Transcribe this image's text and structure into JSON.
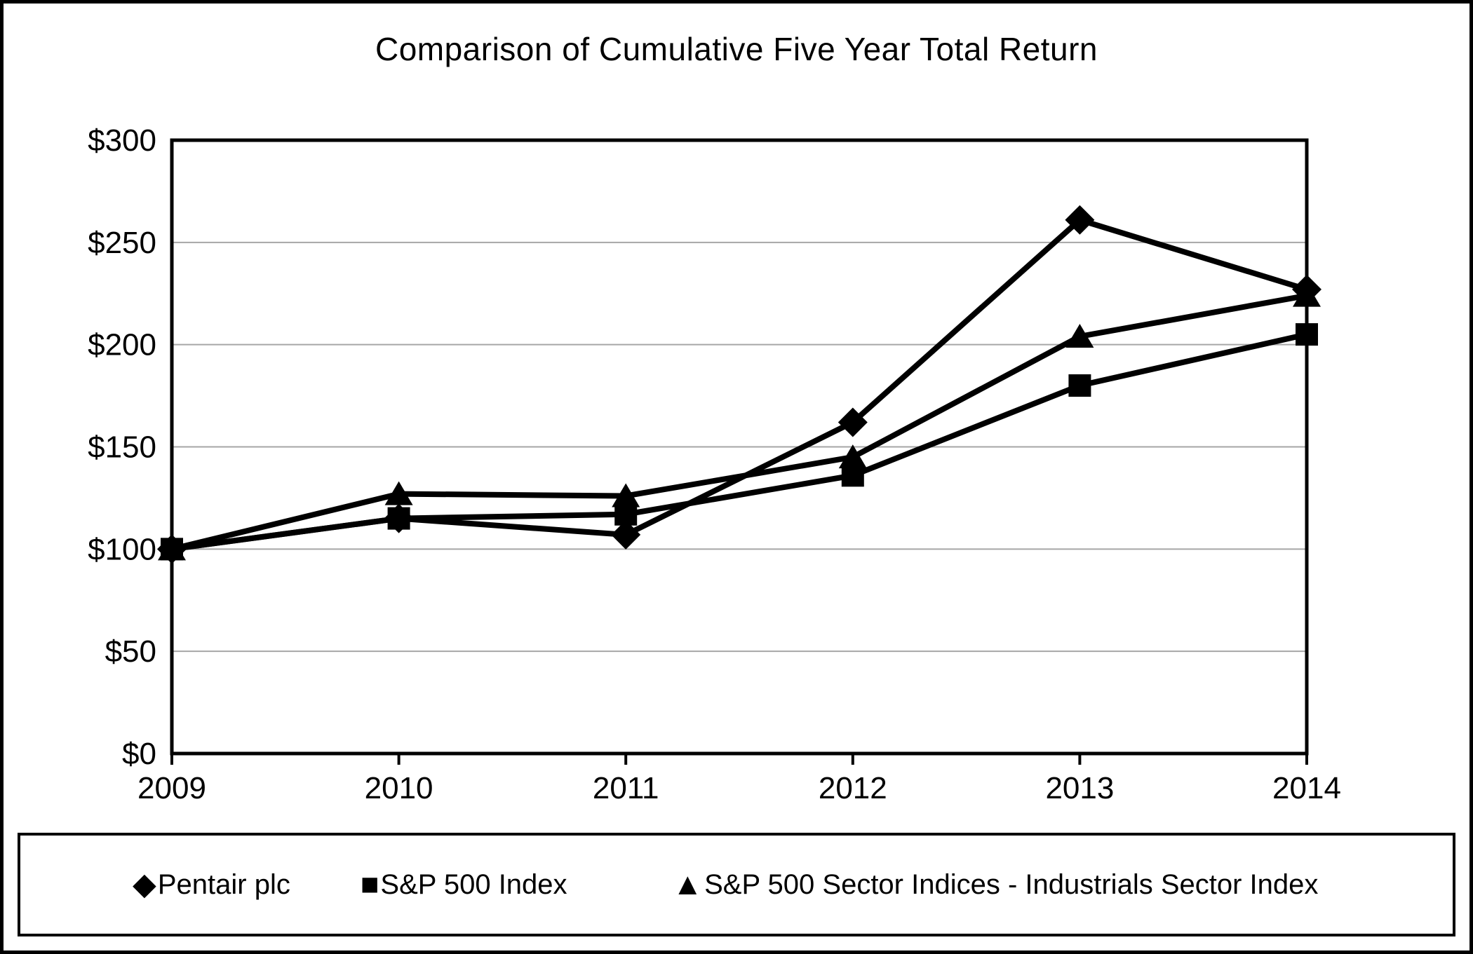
{
  "chart": {
    "title": "Comparison of Cumulative Five Year Total Return"
  },
  "chart_data": {
    "type": "line",
    "title": "Comparison of Cumulative Five Year Total Return",
    "xlabel": "",
    "ylabel": "",
    "x": [
      "2009",
      "2010",
      "2011",
      "2012",
      "2013",
      "2014"
    ],
    "series": [
      {
        "name": "Pentair plc",
        "marker": "diamond",
        "values": [
          100,
          115,
          107,
          162,
          261,
          227
        ]
      },
      {
        "name": "S&P 500 Index",
        "marker": "square",
        "values": [
          100,
          115,
          117,
          136,
          180,
          205
        ]
      },
      {
        "name": "S&P 500 Sector Indices - Industrials Sector Index",
        "marker": "triangle",
        "values": [
          100,
          127,
          126,
          145,
          204,
          224
        ]
      }
    ],
    "ylim": [
      0,
      300
    ],
    "ytick_step": 50,
    "ytick_prefix": "$",
    "y_tick_labels": [
      "$0",
      "$50",
      "$100",
      "$150",
      "$200",
      "$250",
      "$300"
    ],
    "grid": "horizontal-only",
    "legend_position": "bottom-box",
    "line_color": "#000000",
    "marker_color": "#000000",
    "grid_color": "#a6a6a6",
    "plot_border_color": "#000000",
    "background_color": "#ffffff"
  }
}
